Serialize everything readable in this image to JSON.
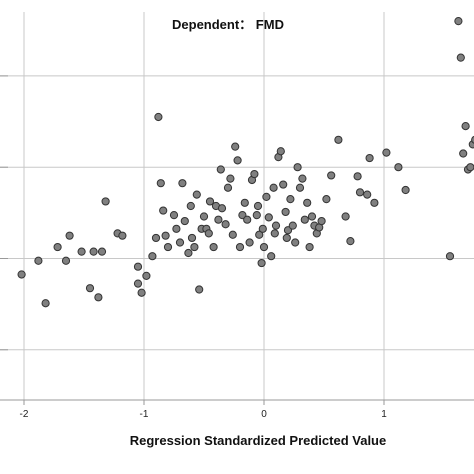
{
  "chart_data": {
    "type": "scatter",
    "title": "Dependent： FMD",
    "xlabel": "Regression Standardized Predicted Value",
    "ylabel": "",
    "xlim": [
      -2.2,
      1.75
    ],
    "ylim": [
      -3.1,
      5.4
    ],
    "x_ticks": [
      -2,
      -1,
      0,
      1
    ],
    "x_tick_labels": [
      "-2",
      "-1",
      "0",
      "1"
    ],
    "y_gridlines": [
      -2,
      0,
      2,
      4
    ],
    "grid": true,
    "legend": "none",
    "colors": {
      "marker_fill": "#808080",
      "marker_stroke": "#333333",
      "grid": "#c8c8c8",
      "axis": "#999999"
    },
    "points": [
      [
        -2.02,
        -0.35
      ],
      [
        -1.88,
        -0.05
      ],
      [
        -1.82,
        -0.98
      ],
      [
        -1.72,
        0.25
      ],
      [
        -1.65,
        -0.05
      ],
      [
        -1.62,
        0.5
      ],
      [
        -1.52,
        0.15
      ],
      [
        -1.45,
        -0.65
      ],
      [
        -1.42,
        0.15
      ],
      [
        -1.38,
        -0.85
      ],
      [
        -1.35,
        0.15
      ],
      [
        -1.32,
        1.25
      ],
      [
        -1.22,
        0.55
      ],
      [
        -1.18,
        0.5
      ],
      [
        -1.05,
        -0.18
      ],
      [
        -1.05,
        -0.55
      ],
      [
        -1.02,
        -0.75
      ],
      [
        -0.98,
        -0.38
      ],
      [
        -0.93,
        0.05
      ],
      [
        -0.9,
        0.45
      ],
      [
        -0.88,
        3.1
      ],
      [
        -0.86,
        1.65
      ],
      [
        -0.84,
        1.05
      ],
      [
        -0.82,
        0.5
      ],
      [
        -0.8,
        0.25
      ],
      [
        -0.75,
        0.95
      ],
      [
        -0.73,
        0.65
      ],
      [
        -0.7,
        0.35
      ],
      [
        -0.68,
        1.65
      ],
      [
        -0.66,
        0.82
      ],
      [
        -0.63,
        0.12
      ],
      [
        -0.61,
        1.15
      ],
      [
        -0.6,
        0.45
      ],
      [
        -0.58,
        0.25
      ],
      [
        -0.56,
        1.4
      ],
      [
        -0.54,
        -0.68
      ],
      [
        -0.52,
        0.65
      ],
      [
        -0.5,
        0.92
      ],
      [
        -0.48,
        0.65
      ],
      [
        -0.46,
        0.55
      ],
      [
        -0.45,
        1.25
      ],
      [
        -0.42,
        0.25
      ],
      [
        -0.4,
        1.15
      ],
      [
        -0.38,
        0.85
      ],
      [
        -0.36,
        1.95
      ],
      [
        -0.35,
        1.1
      ],
      [
        -0.32,
        0.75
      ],
      [
        -0.3,
        1.55
      ],
      [
        -0.28,
        1.75
      ],
      [
        -0.26,
        0.52
      ],
      [
        -0.24,
        2.45
      ],
      [
        -0.22,
        2.15
      ],
      [
        -0.2,
        0.25
      ],
      [
        -0.18,
        0.95
      ],
      [
        -0.16,
        1.22
      ],
      [
        -0.14,
        0.85
      ],
      [
        -0.12,
        0.35
      ],
      [
        -0.1,
        1.72
      ],
      [
        -0.08,
        1.85
      ],
      [
        -0.06,
        0.95
      ],
      [
        -0.05,
        1.15
      ],
      [
        -0.04,
        0.52
      ],
      [
        -0.02,
        -0.1
      ],
      [
        -0.01,
        0.65
      ],
      [
        0.0,
        0.25
      ],
      [
        0.02,
        1.35
      ],
      [
        0.04,
        0.9
      ],
      [
        0.06,
        0.05
      ],
      [
        0.08,
        1.55
      ],
      [
        0.09,
        0.55
      ],
      [
        0.1,
        0.72
      ],
      [
        0.12,
        2.22
      ],
      [
        0.14,
        2.35
      ],
      [
        0.16,
        1.62
      ],
      [
        0.18,
        1.02
      ],
      [
        0.19,
        0.45
      ],
      [
        0.2,
        0.62
      ],
      [
        0.22,
        1.3
      ],
      [
        0.24,
        0.72
      ],
      [
        0.26,
        0.35
      ],
      [
        0.28,
        2.0
      ],
      [
        0.3,
        1.55
      ],
      [
        0.32,
        1.75
      ],
      [
        0.34,
        0.85
      ],
      [
        0.36,
        1.22
      ],
      [
        0.38,
        0.25
      ],
      [
        0.4,
        0.92
      ],
      [
        0.42,
        0.72
      ],
      [
        0.44,
        0.55
      ],
      [
        0.46,
        0.68
      ],
      [
        0.48,
        0.82
      ],
      [
        0.52,
        1.3
      ],
      [
        0.56,
        1.82
      ],
      [
        0.62,
        2.6
      ],
      [
        0.68,
        0.92
      ],
      [
        0.72,
        0.38
      ],
      [
        0.78,
        1.8
      ],
      [
        0.8,
        1.45
      ],
      [
        0.86,
        1.4
      ],
      [
        0.88,
        2.2
      ],
      [
        0.92,
        1.22
      ],
      [
        1.02,
        2.32
      ],
      [
        1.12,
        2.0
      ],
      [
        1.18,
        1.5
      ],
      [
        1.55,
        0.05
      ],
      [
        1.62,
        5.2
      ],
      [
        1.64,
        4.4
      ],
      [
        1.66,
        2.3
      ],
      [
        1.68,
        2.9
      ],
      [
        1.7,
        1.95
      ],
      [
        1.72,
        2.0
      ],
      [
        1.74,
        2.5
      ],
      [
        1.76,
        2.6
      ]
    ]
  }
}
